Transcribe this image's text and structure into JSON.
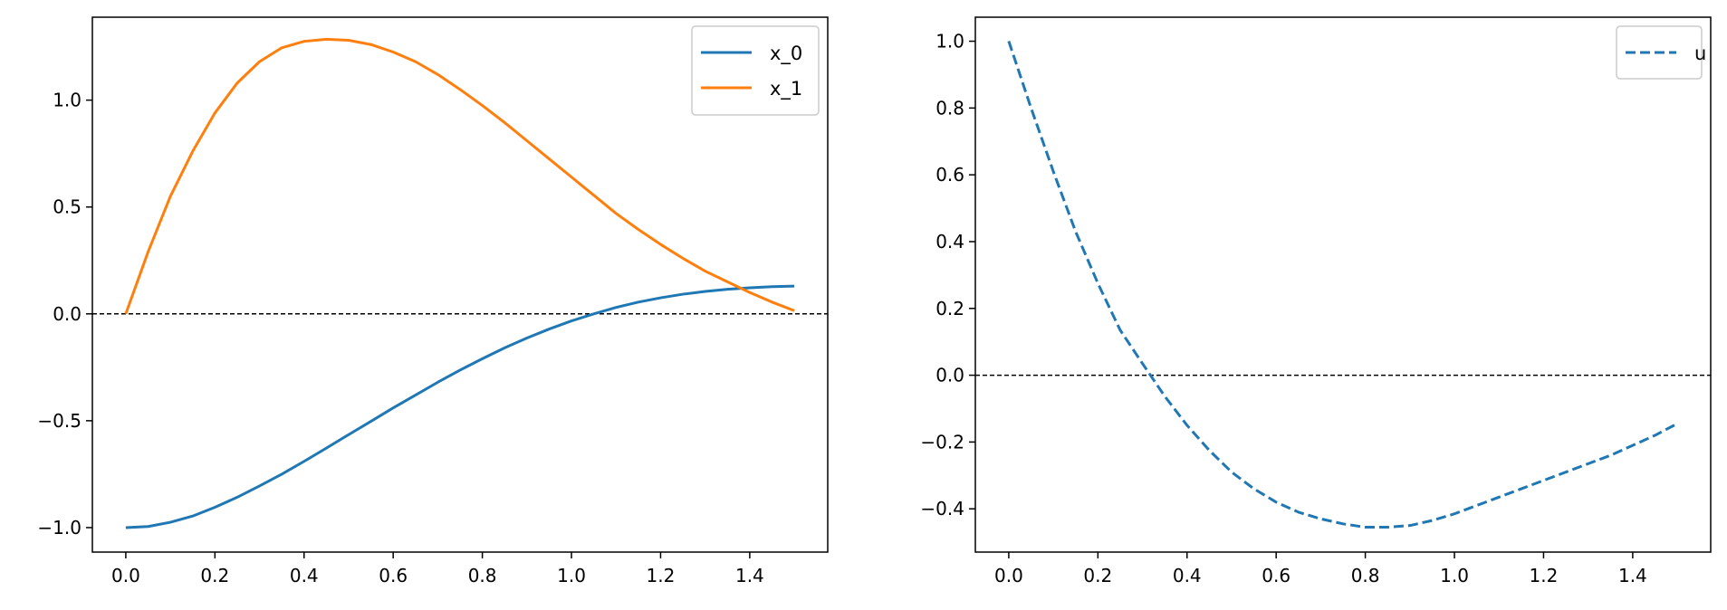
{
  "chart_data": [
    {
      "type": "line",
      "xlim": [
        -0.075,
        1.575
      ],
      "ylim": [
        -1.1145,
        1.388
      ],
      "xticks": [
        "0.0",
        "0.2",
        "0.4",
        "0.6",
        "0.8",
        "1.0",
        "1.2",
        "1.4"
      ],
      "xtick_values": [
        0,
        0.2,
        0.4,
        0.6,
        0.8,
        1.0,
        1.2,
        1.4
      ],
      "yticks": [
        "−1.0",
        "−0.5",
        "0.0",
        "0.5",
        "1.0"
      ],
      "ytick_values": [
        -1.0,
        -0.5,
        0,
        0.5,
        1.0
      ],
      "reference_line": {
        "y": 0,
        "style": "dashed",
        "color": "#000000"
      },
      "legend_position": "upper right",
      "series": [
        {
          "name": "x_0",
          "color": "#1f77b4",
          "style": "solid",
          "x": [
            0,
            0.05,
            0.1,
            0.15,
            0.2,
            0.25,
            0.3,
            0.35,
            0.4,
            0.45,
            0.5,
            0.55,
            0.6,
            0.65,
            0.7,
            0.75,
            0.8,
            0.85,
            0.9,
            0.95,
            1.0,
            1.05,
            1.1,
            1.15,
            1.2,
            1.25,
            1.3,
            1.35,
            1.4,
            1.45,
            1.5
          ],
          "y": [
            -1.0,
            -0.995,
            -0.975,
            -0.946,
            -0.905,
            -0.858,
            -0.805,
            -0.75,
            -0.69,
            -0.628,
            -0.565,
            -0.503,
            -0.44,
            -0.38,
            -0.32,
            -0.263,
            -0.21,
            -0.159,
            -0.113,
            -0.071,
            -0.033,
            0.0,
            0.03,
            0.055,
            0.075,
            0.092,
            0.105,
            0.115,
            0.122,
            0.127,
            0.13
          ]
        },
        {
          "name": "x_1",
          "color": "#ff7f0e",
          "style": "solid",
          "x": [
            0,
            0.05,
            0.1,
            0.15,
            0.2,
            0.25,
            0.3,
            0.35,
            0.4,
            0.45,
            0.5,
            0.55,
            0.6,
            0.65,
            0.7,
            0.75,
            0.8,
            0.85,
            0.9,
            0.95,
            1.0,
            1.05,
            1.1,
            1.15,
            1.2,
            1.25,
            1.3,
            1.35,
            1.4,
            1.45,
            1.5
          ],
          "y": [
            0.0,
            0.29,
            0.55,
            0.76,
            0.94,
            1.08,
            1.18,
            1.245,
            1.275,
            1.285,
            1.28,
            1.26,
            1.225,
            1.18,
            1.12,
            1.05,
            0.975,
            0.895,
            0.81,
            0.725,
            0.64,
            0.555,
            0.47,
            0.395,
            0.325,
            0.26,
            0.2,
            0.15,
            0.1,
            0.055,
            0.015
          ]
        }
      ]
    },
    {
      "type": "line",
      "xlim": [
        -0.075,
        1.575
      ],
      "ylim": [
        -0.5295,
        1.0719
      ],
      "xticks": [
        "0.0",
        "0.2",
        "0.4",
        "0.6",
        "0.8",
        "1.0",
        "1.2",
        "1.4"
      ],
      "xtick_values": [
        0,
        0.2,
        0.4,
        0.6,
        0.8,
        1.0,
        1.2,
        1.4
      ],
      "yticks": [
        "−0.4",
        "−0.2",
        "0.0",
        "0.2",
        "0.4",
        "0.6",
        "0.8",
        "1.0"
      ],
      "ytick_values": [
        -0.4,
        -0.2,
        0,
        0.2,
        0.4,
        0.6,
        0.8,
        1.0
      ],
      "reference_line": {
        "y": 0,
        "style": "dashed",
        "color": "#000000"
      },
      "legend_position": "upper right",
      "series": [
        {
          "name": "u",
          "color": "#1f77b4",
          "style": "dashed",
          "x": [
            0,
            0.05,
            0.1,
            0.15,
            0.2,
            0.25,
            0.3,
            0.35,
            0.4,
            0.45,
            0.5,
            0.55,
            0.6,
            0.65,
            0.7,
            0.75,
            0.8,
            0.85,
            0.9,
            0.95,
            1.0,
            1.05,
            1.1,
            1.15,
            1.2,
            1.25,
            1.3,
            1.35,
            1.4,
            1.45,
            1.5
          ],
          "y": [
            1.0,
            0.8,
            0.61,
            0.43,
            0.275,
            0.135,
            0.035,
            -0.063,
            -0.15,
            -0.225,
            -0.29,
            -0.34,
            -0.38,
            -0.41,
            -0.43,
            -0.445,
            -0.455,
            -0.455,
            -0.45,
            -0.435,
            -0.415,
            -0.39,
            -0.365,
            -0.34,
            -0.315,
            -0.29,
            -0.265,
            -0.24,
            -0.21,
            -0.18,
            -0.145
          ]
        }
      ]
    }
  ]
}
